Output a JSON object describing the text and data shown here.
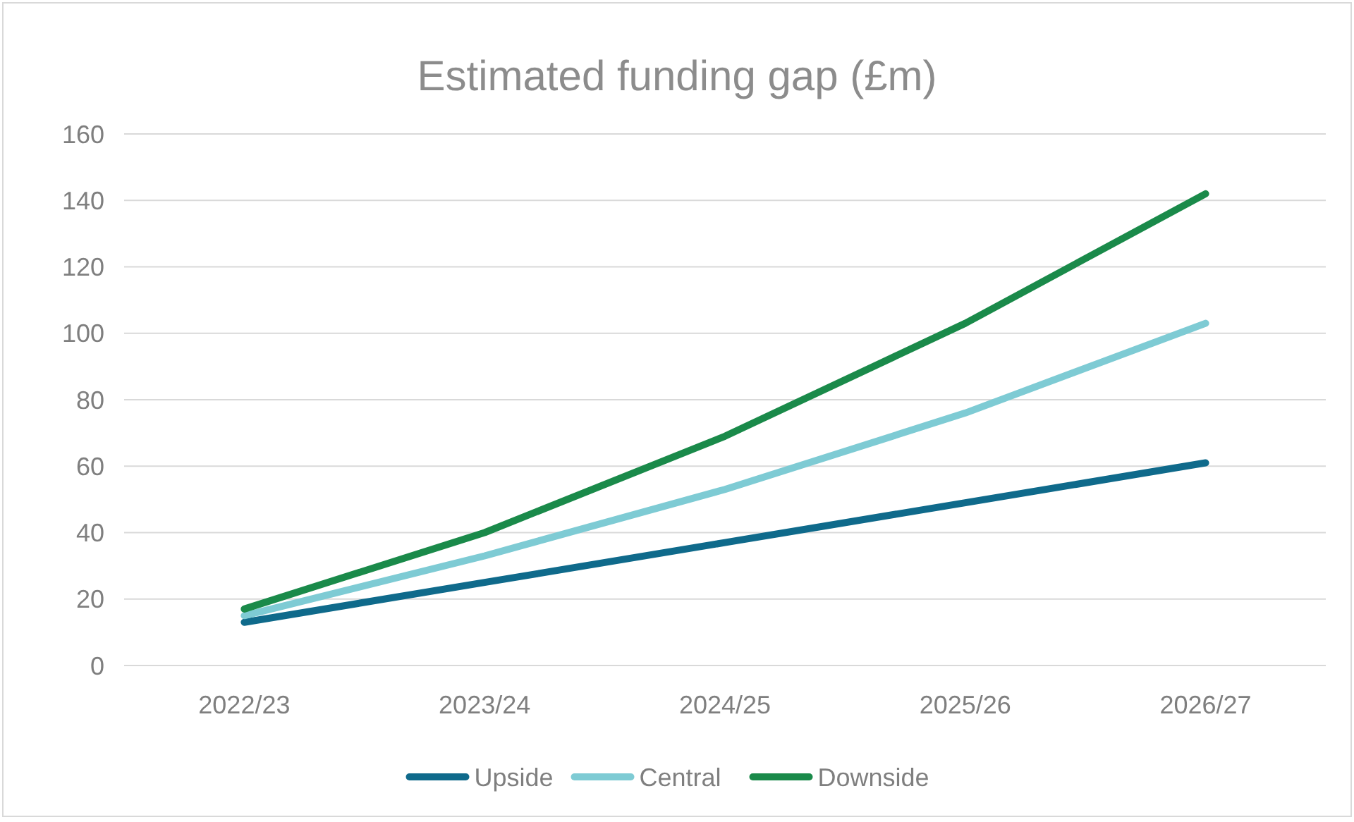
{
  "chart_data": {
    "type": "line",
    "title": "Estimated funding gap (£m)",
    "categories": [
      "2022/23",
      "2023/24",
      "2024/25",
      "2025/26",
      "2026/27"
    ],
    "series": [
      {
        "name": "Upside",
        "color": "#0f6a8b",
        "values": [
          13,
          25,
          37,
          49,
          61
        ]
      },
      {
        "name": "Central",
        "color": "#7ecbd4",
        "values": [
          15,
          33,
          53,
          76,
          103
        ]
      },
      {
        "name": "Downside",
        "color": "#1a8a4a",
        "values": [
          17,
          40,
          69,
          103,
          142
        ]
      }
    ],
    "ylim": [
      0,
      160
    ],
    "yticks": [
      0,
      20,
      40,
      60,
      80,
      100,
      120,
      140,
      160
    ],
    "grid": "y",
    "legend": "bottom",
    "marker": "none",
    "line_style": "solid"
  }
}
